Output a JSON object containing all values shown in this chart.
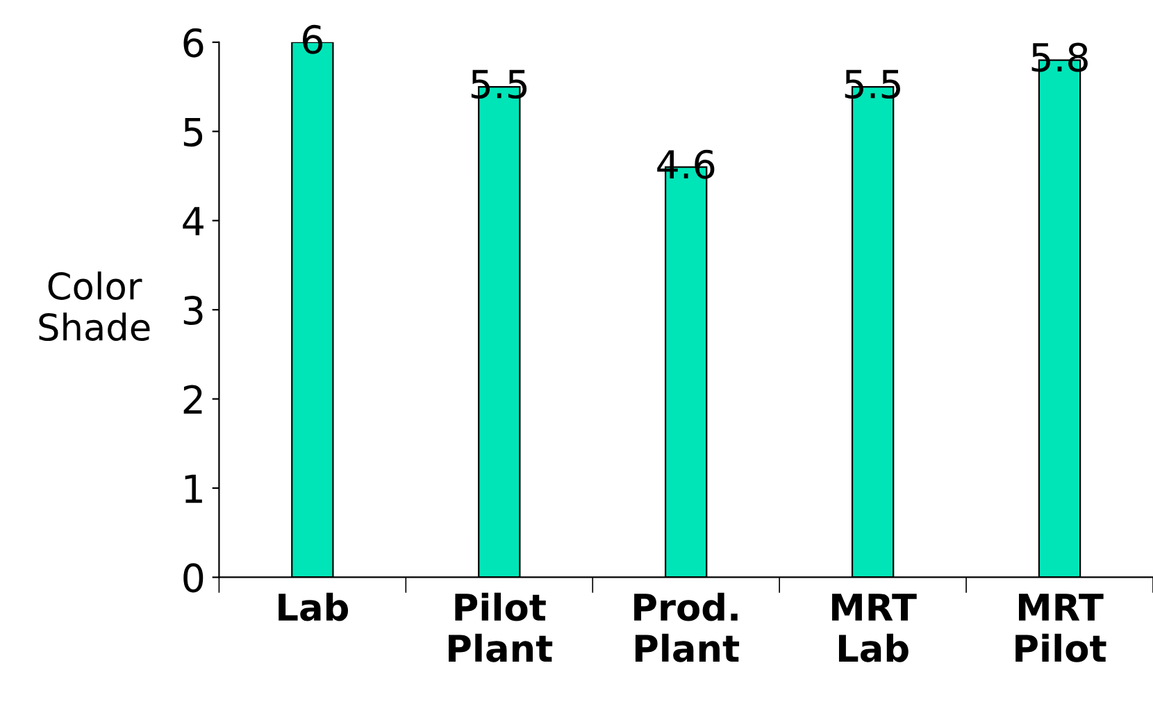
{
  "chart_data": {
    "type": "bar",
    "ylabel": "Color\nShade",
    "categories": [
      "Lab",
      "Pilot\nPlant",
      "Prod.\nPlant",
      "MRT\nLab",
      "MRT\nPilot"
    ],
    "values": [
      6,
      5.5,
      4.6,
      5.5,
      5.8
    ],
    "color": "#00e5b8",
    "ylim": [
      0,
      6
    ],
    "yticks": [
      0,
      1,
      2,
      3,
      4,
      5,
      6
    ],
    "data_labels": true,
    "grid": false,
    "legend": false
  }
}
